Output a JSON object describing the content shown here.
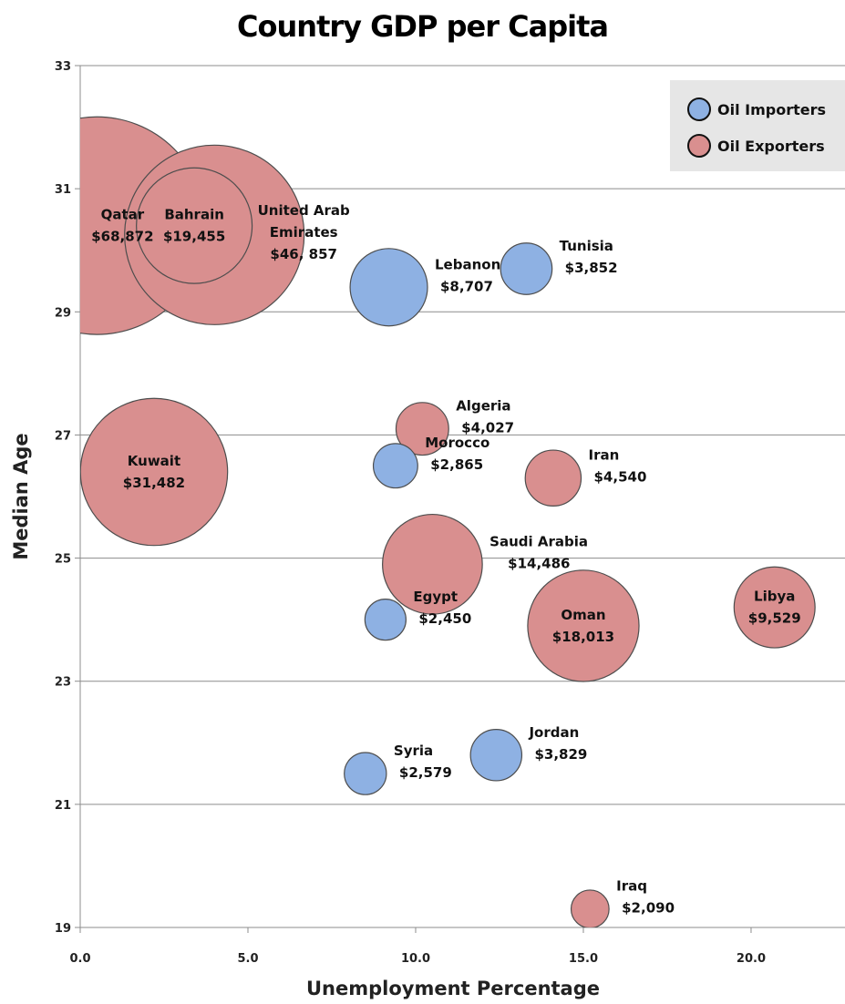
{
  "chart_data": {
    "type": "scatter",
    "title": "Country GDP per Capita",
    "xlabel": "Unemployment Percentage",
    "ylabel": "Median Age",
    "xlim": [
      0,
      22.8
    ],
    "ylim": [
      19,
      33
    ],
    "x_ticks": [
      0,
      5,
      10,
      15,
      20
    ],
    "x_tick_labels": [
      "0.0",
      "5.0",
      "10.0",
      "15.0",
      "20.0"
    ],
    "y_ticks": [
      19,
      21,
      23,
      25,
      27,
      29,
      31,
      33
    ],
    "y_tick_labels": [
      "19",
      "21",
      "23",
      "25",
      "27",
      "29",
      "31",
      "33"
    ],
    "grid": "horizontal",
    "legend_position": "top-right",
    "series": [
      {
        "name": "Oil Importers",
        "color": "#8eb1e3",
        "points": [
          {
            "country": "Lebanon",
            "gdp_label": "$8,707",
            "gdp": 8707,
            "x": 9.2,
            "y": 29.4
          },
          {
            "country": "Tunisia",
            "gdp_label": "$3,852",
            "gdp": 3852,
            "x": 13.3,
            "y": 29.7
          },
          {
            "country": "Morocco",
            "gdp_label": "$2,865",
            "gdp": 2865,
            "x": 9.4,
            "y": 26.5
          },
          {
            "country": "Egypt",
            "gdp_label": "$2,450",
            "gdp": 2450,
            "x": 9.1,
            "y": 24.0
          },
          {
            "country": "Jordan",
            "gdp_label": "$3,829",
            "gdp": 3829,
            "x": 12.4,
            "y": 21.8
          },
          {
            "country": "Syria",
            "gdp_label": "$2,579",
            "gdp": 2579,
            "x": 8.5,
            "y": 21.5
          }
        ]
      },
      {
        "name": "Oil Exporters",
        "color": "#d98f8f",
        "points": [
          {
            "country": "Qatar",
            "gdp_label": "$68,872",
            "gdp": 68872,
            "x": 0.5,
            "y": 30.4
          },
          {
            "country": "United Arab Emirates",
            "gdp_label": "$46, 857",
            "gdp": 46857,
            "x": 4.0,
            "y": 30.25
          },
          {
            "country": "Bahrain",
            "gdp_label": "$19,455",
            "gdp": 19455,
            "x": 3.4,
            "y": 30.4
          },
          {
            "country": "Kuwait",
            "gdp_label": "$31,482",
            "gdp": 31482,
            "x": 2.2,
            "y": 26.4
          },
          {
            "country": "Algeria",
            "gdp_label": "$4,027",
            "gdp": 4027,
            "x": 10.2,
            "y": 27.1
          },
          {
            "country": "Iran",
            "gdp_label": "$4,540",
            "gdp": 4540,
            "x": 14.1,
            "y": 26.3
          },
          {
            "country": "Saudi Arabia",
            "gdp_label": "$14,486",
            "gdp": 14486,
            "x": 10.5,
            "y": 24.9
          },
          {
            "country": "Oman",
            "gdp_label": "$18,013",
            "gdp": 18013,
            "x": 15.0,
            "y": 23.9
          },
          {
            "country": "Libya",
            "gdp_label": "$9,529",
            "gdp": 9529,
            "x": 20.7,
            "y": 24.2
          },
          {
            "country": "Iraq",
            "gdp_label": "$2,090",
            "gdp": 2090,
            "x": 15.2,
            "y": 19.3
          }
        ]
      }
    ]
  }
}
